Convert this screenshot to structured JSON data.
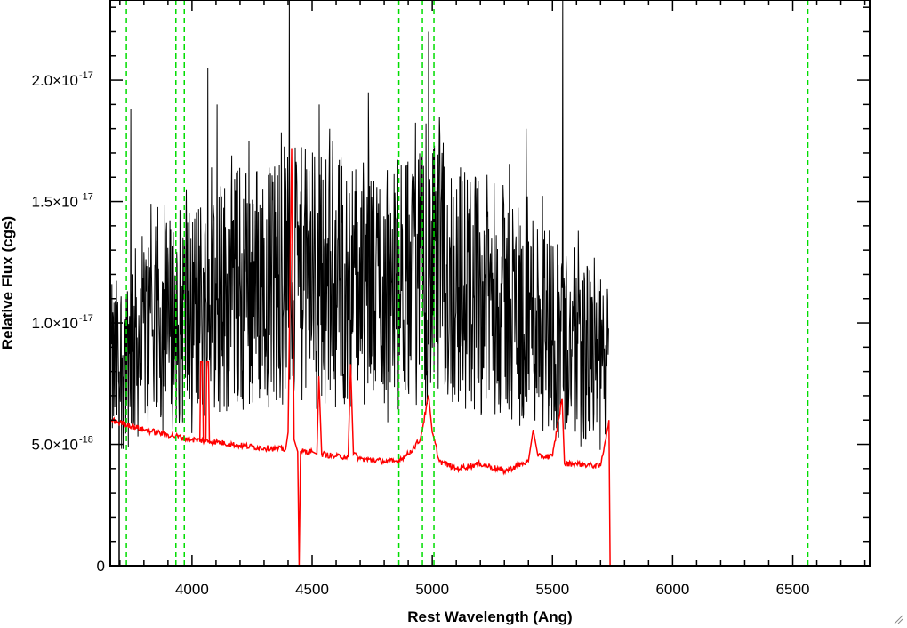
{
  "chart_data": {
    "type": "line",
    "xlabel": "Rest Wavelength (Ang)",
    "ylabel": "Relative Flux (cgs)",
    "xlim": [
      3660,
      6820
    ],
    "ylim": [
      0,
      2.33e-17
    ],
    "x_ticks": [
      {
        "value": 4000,
        "label": "4000"
      },
      {
        "value": 4500,
        "label": "4500"
      },
      {
        "value": 5000,
        "label": "5000"
      },
      {
        "value": 5500,
        "label": "5500"
      },
      {
        "value": 6000,
        "label": "6000"
      },
      {
        "value": 6500,
        "label": "6500"
      }
    ],
    "y_ticks": [
      {
        "value": 0,
        "mantissa": "0",
        "exponent": ""
      },
      {
        "value": 5e-18,
        "mantissa": "5.0×10",
        "exponent": "-18"
      },
      {
        "value": 1e-17,
        "mantissa": "1.0×10",
        "exponent": "-17"
      },
      {
        "value": 1.5e-17,
        "mantissa": "1.5×10",
        "exponent": "-17"
      },
      {
        "value": 2e-17,
        "mantissa": "2.0×10",
        "exponent": "-17"
      }
    ],
    "grid": false,
    "series": [
      {
        "style": "noisy-spectrum",
        "color": "#000000",
        "x_range": [
          3665,
          5735
        ],
        "mean_trend": [
          [
            3665,
            8e-18
          ],
          [
            3800,
            9.5e-18
          ],
          [
            4000,
            1.05e-17
          ],
          [
            4200,
            1.15e-17
          ],
          [
            4500,
            1.2e-17
          ],
          [
            4800,
            1.15e-17
          ],
          [
            5000,
            1.2e-17
          ],
          [
            5200,
            1.12e-17
          ],
          [
            5400,
            1.05e-17
          ],
          [
            5600,
            9e-18
          ],
          [
            5735,
            8e-18
          ]
        ],
        "spikes": [
          [
            3745,
            1.88e-17
          ],
          [
            4065,
            2.05e-17
          ],
          [
            4105,
            1.9e-17
          ],
          [
            4405,
            2.35e-17
          ],
          [
            4530,
            1.9e-17
          ],
          [
            4735,
            1.95e-17
          ],
          [
            4985,
            2.2e-17
          ],
          [
            5030,
            1.85e-17
          ],
          [
            5390,
            1.8e-17
          ],
          [
            5542,
            2.35e-17
          ]
        ]
      },
      {
        "style": "model-continuum",
        "color": "#ff0000",
        "points": [
          [
            3660,
            6e-18
          ],
          [
            3700,
            5.9e-18
          ],
          [
            3800,
            5.6e-18
          ],
          [
            3900,
            5.4e-18
          ],
          [
            4000,
            5.2e-18
          ],
          [
            4100,
            5.1e-18
          ],
          [
            4200,
            4.95e-18
          ],
          [
            4300,
            4.85e-18
          ],
          [
            4390,
            4.8e-18
          ],
          [
            4400,
            5.5e-18
          ],
          [
            4415,
            1.72e-17
          ],
          [
            4425,
            5.2e-18
          ],
          [
            4440,
            4.7e-18
          ],
          [
            4446,
            0
          ],
          [
            4452,
            4.7e-18
          ],
          [
            4500,
            4.7e-18
          ],
          [
            4520,
            4.6e-18
          ],
          [
            4528,
            7.8e-18
          ],
          [
            4540,
            4.6e-18
          ],
          [
            4600,
            4.5e-18
          ],
          [
            4650,
            4.5e-18
          ],
          [
            4660,
            8.3e-18
          ],
          [
            4672,
            4.6e-18
          ],
          [
            4700,
            4.4e-18
          ],
          [
            4800,
            4.3e-18
          ],
          [
            4850,
            4.3e-18
          ],
          [
            4900,
            4.6e-18
          ],
          [
            4950,
            5.2e-18
          ],
          [
            4985,
            7e-18
          ],
          [
            5000,
            5.5e-18
          ],
          [
            5030,
            4.3e-18
          ],
          [
            5100,
            4e-18
          ],
          [
            5200,
            4.2e-18
          ],
          [
            5300,
            3.9e-18
          ],
          [
            5400,
            4.3e-18
          ],
          [
            5420,
            5.6e-18
          ],
          [
            5440,
            4.5e-18
          ],
          [
            5500,
            4.5e-18
          ],
          [
            5540,
            6.9e-18
          ],
          [
            5550,
            4.2e-18
          ],
          [
            5600,
            4.2e-18
          ],
          [
            5700,
            4.1e-18
          ],
          [
            5735,
            6e-18
          ],
          [
            5740,
            0
          ],
          [
            6820,
            0
          ]
        ],
        "extra_spikes": [
          [
            4040,
            8.4e-18
          ],
          [
            4065,
            8.4e-18
          ]
        ]
      },
      {
        "style": "reference-lines",
        "color": "#00dd00",
        "x": [
          3727,
          3933,
          3968,
          4861,
          4959,
          5007,
          6563
        ]
      }
    ]
  }
}
